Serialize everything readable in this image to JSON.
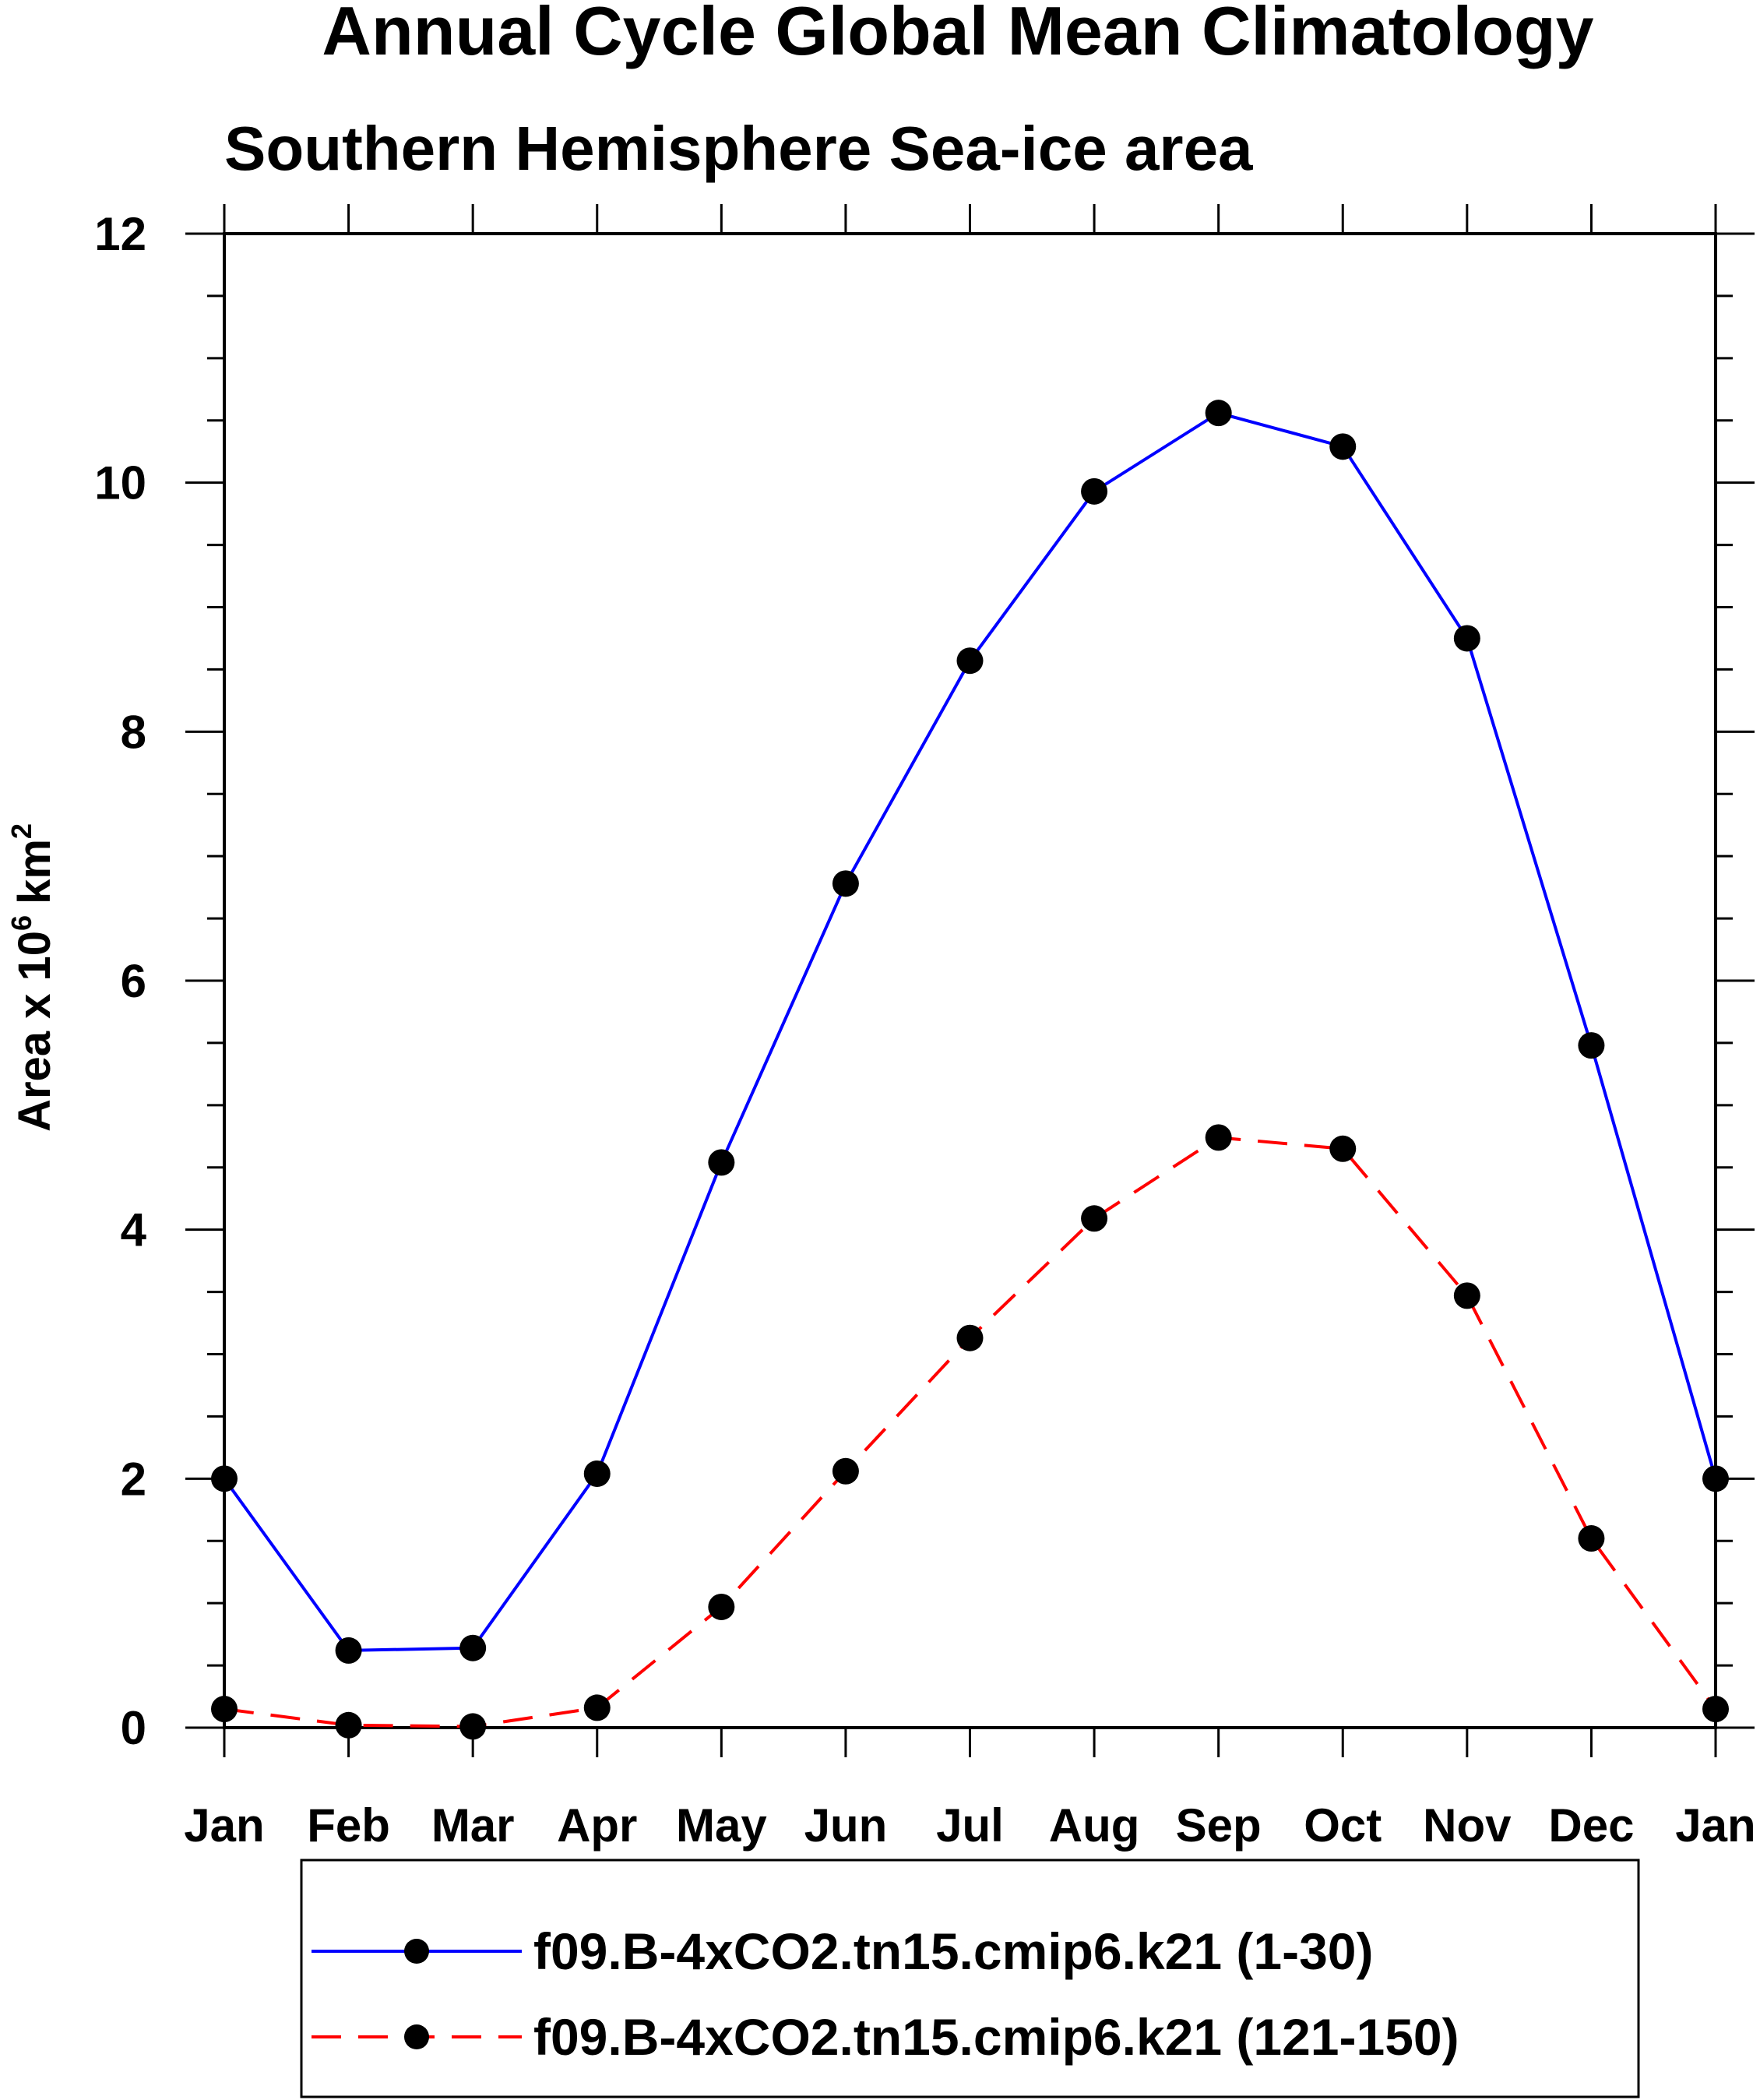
{
  "chart_data": {
    "type": "line",
    "title": "Annual Cycle Global Mean Climatology",
    "subtitle": "Southern Hemisphere Sea-ice area",
    "ylabel": "Area x 10",
    "ylabel_exponent": "6",
    "ylabel_unit": "km",
    "ylabel_unit_exponent": "2",
    "xlabel": "",
    "categories": [
      "Jan",
      "Feb",
      "Mar",
      "Apr",
      "May",
      "Jun",
      "Jul",
      "Aug",
      "Sep",
      "Oct",
      "Nov",
      "Dec",
      "Jan"
    ],
    "ylim": [
      0,
      12
    ],
    "yticks": [
      0,
      2,
      4,
      6,
      8,
      10,
      12
    ],
    "y_minor_step": 0.5,
    "grid": false,
    "legend_position": "bottom-center",
    "series": [
      {
        "name": "f09.B-4xCO2.tn15.cmip6.k21 (1-30)",
        "values": [
          2.0,
          0.62,
          0.64,
          2.04,
          4.54,
          6.78,
          8.57,
          9.93,
          10.56,
          10.29,
          8.75,
          5.48,
          2.0
        ],
        "color": "#0000ff",
        "dash": "solid",
        "marker": "filled-circle"
      },
      {
        "name": "f09.B-4xCO2.tn15.cmip6.k21 (121-150)",
        "values": [
          0.15,
          0.02,
          0.01,
          0.16,
          0.97,
          2.06,
          3.13,
          4.09,
          4.74,
          4.65,
          3.47,
          1.52,
          0.15
        ],
        "color": "#ff0000",
        "dash": "dashed",
        "marker": "filled-circle"
      }
    ]
  }
}
